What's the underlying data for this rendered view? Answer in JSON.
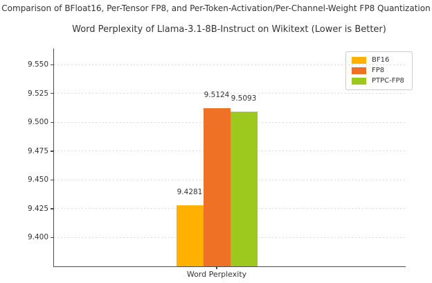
{
  "header": {
    "suptitle": "Comparison of BFloat16, Per-Tensor FP8, and Per-Token-Activation/Per-Channel-Weight FP8 Quantization",
    "title": "Word Perplexity of Llama-3.1-8B-Instruct on Wikitext (Lower is Better)"
  },
  "chart_data": {
    "type": "bar",
    "suptitle": "Comparison of BFloat16, Per-Tensor FP8, and Per-Token-Activation/Per-Channel-Weight FP8 Quantization",
    "title": "Word Perplexity of Llama-3.1-8B-Instruct on Wikitext (Lower is Better)",
    "categories": [
      "Word Perplexity"
    ],
    "series": [
      {
        "name": "BF16",
        "values": [
          9.4281
        ],
        "value_label": "9.4281",
        "color": "#FFB000"
      },
      {
        "name": "FP8",
        "values": [
          9.5124
        ],
        "value_label": "9.5124",
        "color": "#EE7125"
      },
      {
        "name": "PTPC-FP8",
        "values": [
          9.5093
        ],
        "value_label": "9.5093",
        "color": "#9DC91E"
      }
    ],
    "xlabel": "Word Perplexity",
    "ylabel": "",
    "ylim": [
      9.375,
      9.564
    ],
    "yticks": [
      9.4,
      9.425,
      9.45,
      9.475,
      9.5,
      9.525,
      9.55
    ],
    "ytick_labels": [
      "9.400",
      "9.425",
      "9.450",
      "9.475",
      "9.500",
      "9.525",
      "9.550"
    ],
    "grid": true,
    "grid_style": "dashed",
    "legend_position": "upper right"
  },
  "colors": {
    "background": "#FFFFFF",
    "text": "#333333",
    "axis": "#4B4B4B",
    "grid": "#D9D9D9",
    "legend_border": "#CCCCCC",
    "legend_bg": "#FFFFFF"
  }
}
